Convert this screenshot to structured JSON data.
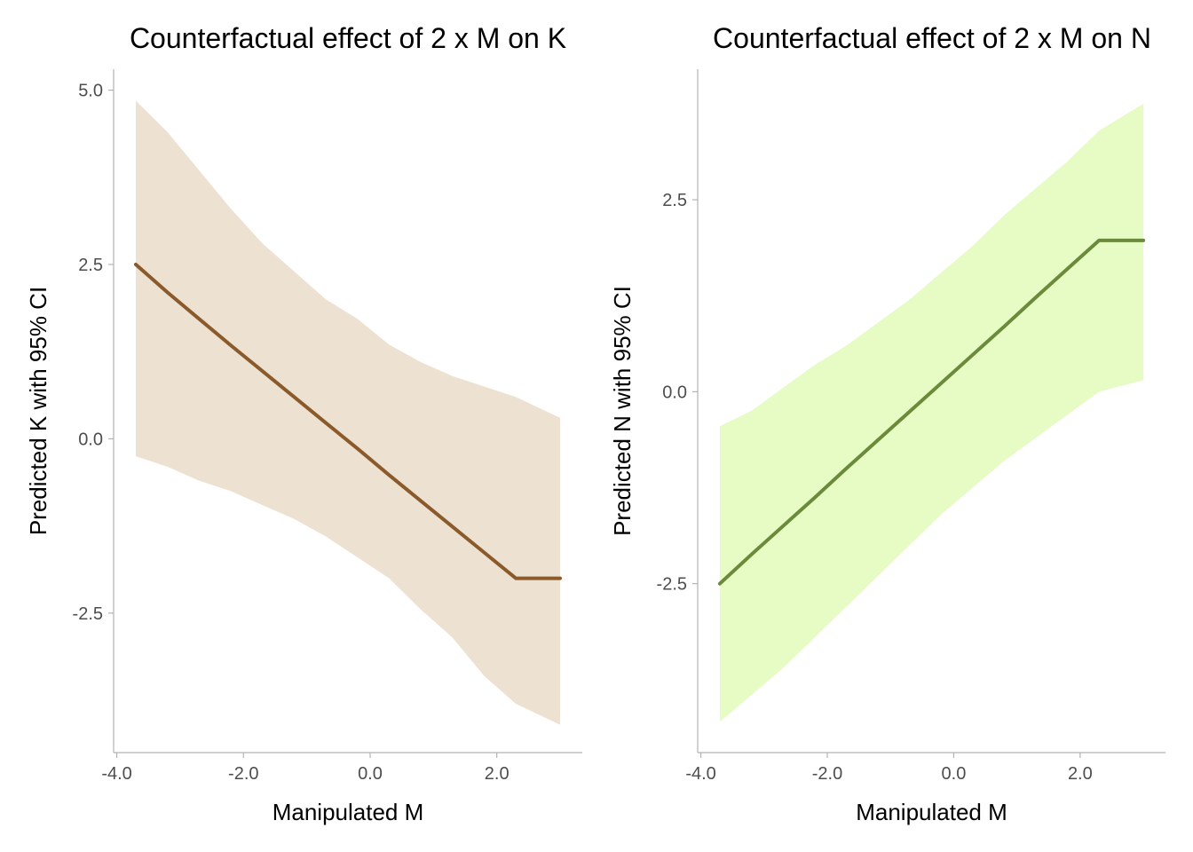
{
  "chart_data": [
    {
      "type": "line",
      "title": "Counterfactual effect of 2 x M on K",
      "xlabel": "Manipulated M",
      "ylabel": "Predicted K with 95% CI",
      "xlim": [
        -4.05,
        3.35
      ],
      "ylim": [
        -4.5,
        5.3
      ],
      "x_ticks": [
        -4,
        -2,
        0,
        2
      ],
      "x_tick_labels": [
        "-4.0",
        "-2.0",
        "0.0",
        "2.0"
      ],
      "y_ticks": [
        -2.5,
        0,
        2.5,
        5
      ],
      "y_tick_labels": [
        "-2.5",
        "0.0",
        "2.5",
        "5.0"
      ],
      "grid": false,
      "line_color": "#8a5a2b",
      "band_color": "#ede1d1",
      "x": [
        -3.7,
        -3.2,
        -2.7,
        -2.2,
        -1.7,
        -1.2,
        -0.7,
        -0.2,
        0.3,
        0.8,
        1.3,
        1.8,
        2.3,
        3.0
      ],
      "mean": [
        2.5,
        2.1,
        1.72,
        1.34,
        0.97,
        0.6,
        0.23,
        -0.14,
        -0.52,
        -0.89,
        -1.26,
        -1.63,
        -2.0,
        -2.0
      ],
      "lower": [
        -0.25,
        -0.4,
        -0.6,
        -0.75,
        -0.95,
        -1.15,
        -1.4,
        -1.7,
        -2.0,
        -2.45,
        -2.85,
        -3.4,
        -3.8,
        -4.1
      ],
      "upper": [
        4.85,
        4.4,
        3.85,
        3.3,
        2.8,
        2.4,
        2.0,
        1.72,
        1.35,
        1.1,
        0.9,
        0.75,
        0.6,
        0.3
      ]
    },
    {
      "type": "line",
      "title": "Counterfactual effect of 2 x M on N",
      "xlabel": "Manipulated M",
      "ylabel": "Predicted N with 95% CI",
      "xlim": [
        -4.05,
        3.35
      ],
      "ylim": [
        -4.7,
        4.2
      ],
      "x_ticks": [
        -4,
        -2,
        0,
        2
      ],
      "x_tick_labels": [
        "-4.0",
        "-2.0",
        "0.0",
        "2.0"
      ],
      "y_ticks": [
        -2.5,
        0,
        2.5
      ],
      "y_tick_labels": [
        "-2.5",
        "0.0",
        "2.5"
      ],
      "grid": false,
      "line_color": "#6b8a3a",
      "band_color": "#e6fcc4",
      "x": [
        -3.7,
        -3.2,
        -2.7,
        -2.2,
        -1.7,
        -1.2,
        -0.7,
        -0.2,
        0.3,
        0.8,
        1.3,
        1.8,
        2.3,
        3.0
      ],
      "mean": [
        -2.5,
        -2.12,
        -1.75,
        -1.38,
        -1.0,
        -0.63,
        -0.26,
        0.11,
        0.48,
        0.85,
        1.23,
        1.6,
        1.97,
        1.97
      ],
      "lower": [
        -4.3,
        -3.95,
        -3.6,
        -3.2,
        -2.8,
        -2.4,
        -2.0,
        -1.6,
        -1.25,
        -0.9,
        -0.6,
        -0.3,
        0.0,
        0.15
      ],
      "upper": [
        -0.45,
        -0.25,
        0.05,
        0.35,
        0.6,
        0.9,
        1.2,
        1.55,
        1.9,
        2.3,
        2.65,
        3.0,
        3.4,
        3.75
      ]
    }
  ]
}
